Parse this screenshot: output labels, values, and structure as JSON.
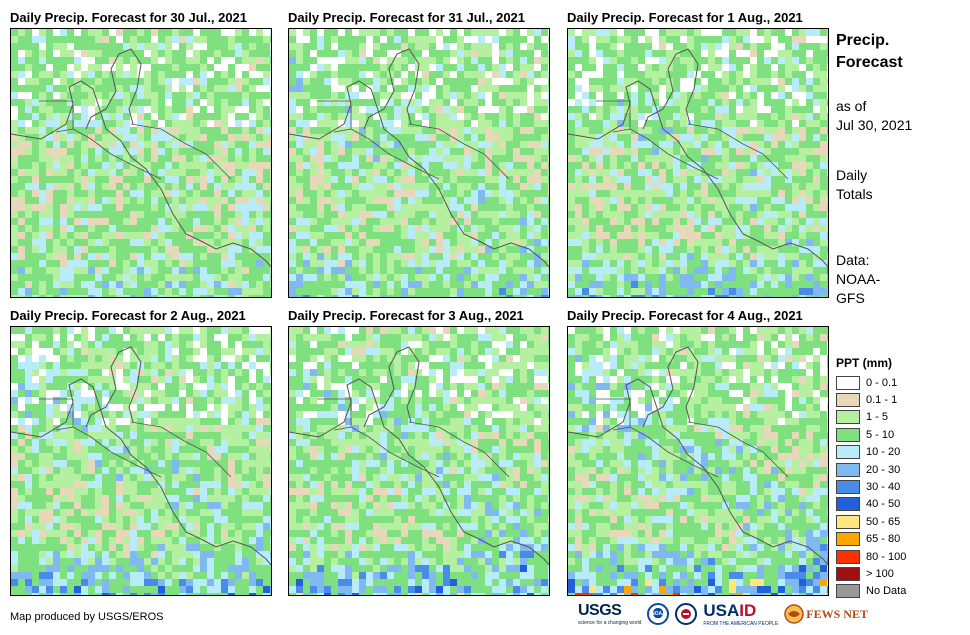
{
  "panels": [
    {
      "title": "Daily Precip. Forecast for 30 Jul., 2021",
      "seed": 11,
      "wet_band": 0.35
    },
    {
      "title": "Daily Precip. Forecast for 31 Jul., 2021",
      "seed": 23,
      "wet_band": 0.55
    },
    {
      "title": "Daily Precip. Forecast for 1 Aug., 2021",
      "seed": 37,
      "wet_band": 0.6
    },
    {
      "title": "Daily Precip. Forecast for 2 Aug., 2021",
      "seed": 41,
      "wet_band": 0.75
    },
    {
      "title": "Daily Precip. Forecast for 3 Aug., 2021",
      "seed": 53,
      "wet_band": 0.85
    },
    {
      "title": "Daily Precip. Forecast for 4 Aug., 2021",
      "seed": 67,
      "wet_band": 1.0
    }
  ],
  "sidebar": {
    "title_line1": "Precip.",
    "title_line2": "Forecast",
    "asof_line1": "as of",
    "asof_line2": "Jul 30, 2021",
    "totals_line1": "Daily",
    "totals_line2": "Totals",
    "source_line1": "Data:",
    "source_line2": "NOAA-",
    "source_line3": "GFS"
  },
  "legend": {
    "title": "PPT (mm)",
    "classes": [
      {
        "label": "0 - 0.1",
        "color": "#ffffff"
      },
      {
        "label": "0.1 - 1",
        "color": "#e6d8b8"
      },
      {
        "label": "1 - 5",
        "color": "#b4f0a0"
      },
      {
        "label": "5 - 10",
        "color": "#7fe07f"
      },
      {
        "label": "10 - 20",
        "color": "#b8ecf8"
      },
      {
        "label": "20 - 30",
        "color": "#80b8f0"
      },
      {
        "label": "30 - 40",
        "color": "#4a8ae8"
      },
      {
        "label": "40 - 50",
        "color": "#2060d8"
      },
      {
        "label": "50 - 65",
        "color": "#ffe680"
      },
      {
        "label": "65 - 80",
        "color": "#ffa500"
      },
      {
        "label": "80 - 100",
        "color": "#ff3000"
      },
      {
        "label": "> 100",
        "color": "#a01010"
      },
      {
        "label": "No Data",
        "color": "#999999"
      }
    ]
  },
  "footer": {
    "credit": "Map produced by USGS/EROS",
    "logo_usgs": "USGS",
    "logo_usgs_tagline": "science for a changing world",
    "logo_noaa": "NOAA",
    "logo_usaid_us": "USA",
    "logo_usaid_id": "ID",
    "logo_usaid_tagline": "FROM THE AMERICAN PEOPLE",
    "logo_fews": "FEWS NET"
  }
}
